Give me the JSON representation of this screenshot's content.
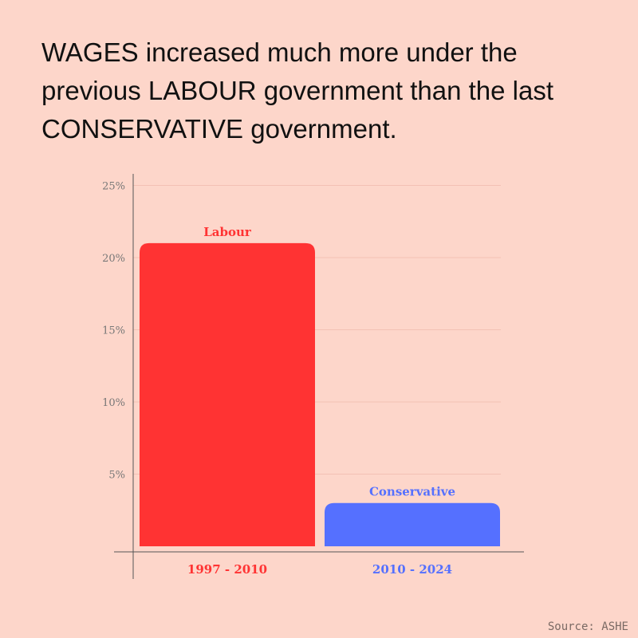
{
  "title": "WAGES increased much more under the previous LABOUR government than the last CONSERVATIVE government.",
  "source": "Source: ASHE",
  "chart_data": {
    "type": "bar",
    "categories": [
      "1997 - 2010",
      "2010 - 2024"
    ],
    "series": [
      {
        "name": "Labour",
        "values": [
          21.0,
          null
        ]
      },
      {
        "name": "Conservative",
        "values": [
          null,
          3.0
        ]
      }
    ],
    "values": [
      21.0,
      3.0
    ],
    "bar_labels": [
      "Labour",
      "Conservative"
    ],
    "colors": [
      "#ff3333",
      "#5570ff"
    ],
    "yticks": [
      "5%",
      "10%",
      "15%",
      "20%",
      "25%"
    ],
    "ytick_values": [
      5,
      10,
      15,
      20,
      25
    ],
    "ylim": [
      0,
      25
    ],
    "grid": true,
    "xlabel": "",
    "ylabel": ""
  }
}
